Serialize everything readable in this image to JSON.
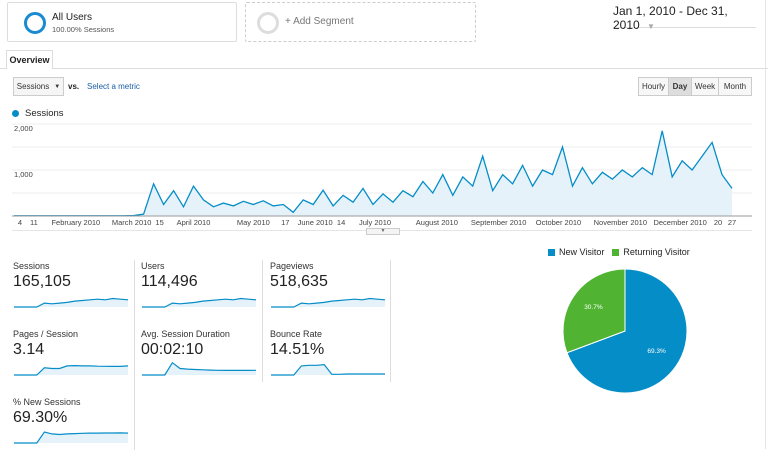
{
  "segments": [
    {
      "title": "All Users",
      "subtitle": "100.00% Sessions"
    },
    {
      "title": "+ Add Segment"
    }
  ],
  "date_range": "Jan 1, 2010 - Dec 31, 2010",
  "tabs": [
    {
      "label": "Overview"
    }
  ],
  "metric_select": {
    "value": "Sessions",
    "vs": "vs.",
    "compare_link": "Select a metric"
  },
  "granularity": {
    "options": [
      "Hourly",
      "Day",
      "Week",
      "Month"
    ],
    "selected": "Day"
  },
  "colors": {
    "accent": "#058dc7",
    "returning": "#50b432",
    "link": "#1a5fa8"
  },
  "chart_data": [
    {
      "type": "area",
      "legend": [
        "Sessions"
      ],
      "y_ticks": [
        "2,000",
        "1,000"
      ],
      "ylim": [
        0,
        2000
      ],
      "x_ticks": [
        {
          "label": "4",
          "date": "2010-01-04"
        },
        {
          "label": "11",
          "date": "2010-01-11"
        },
        {
          "label": "February 2010",
          "date": "2010-02-01"
        },
        {
          "label": "March 2010",
          "date": "2010-03-01"
        },
        {
          "label": "15",
          "date": "2010-03-15"
        },
        {
          "label": "April 2010",
          "date": "2010-04-01"
        },
        {
          "label": "May 2010",
          "date": "2010-05-01"
        },
        {
          "label": "17",
          "date": "2010-05-17"
        },
        {
          "label": "June 2010",
          "date": "2010-06-01"
        },
        {
          "label": "14",
          "date": "2010-06-14"
        },
        {
          "label": "July 2010",
          "date": "2010-07-01"
        },
        {
          "label": "August 2010",
          "date": "2010-08-01"
        },
        {
          "label": "September 2010",
          "date": "2010-09-01"
        },
        {
          "label": "October 2010",
          "date": "2010-10-01"
        },
        {
          "label": "November 2010",
          "date": "2010-11-01"
        },
        {
          "label": "December 2010",
          "date": "2010-12-01"
        },
        {
          "label": "20",
          "date": "2010-12-20"
        },
        {
          "label": "27",
          "date": "2010-12-27"
        }
      ],
      "x": [
        "2010-01-01",
        "2010-01-06",
        "2010-01-11",
        "2010-01-16",
        "2010-01-21",
        "2010-01-26",
        "2010-01-31",
        "2010-02-05",
        "2010-02-10",
        "2010-02-15",
        "2010-02-20",
        "2010-02-25",
        "2010-03-02",
        "2010-03-07",
        "2010-03-12",
        "2010-03-17",
        "2010-03-22",
        "2010-03-27",
        "2010-04-01",
        "2010-04-06",
        "2010-04-11",
        "2010-04-16",
        "2010-04-21",
        "2010-04-26",
        "2010-05-01",
        "2010-05-06",
        "2010-05-11",
        "2010-05-16",
        "2010-05-21",
        "2010-05-26",
        "2010-05-31",
        "2010-06-05",
        "2010-06-10",
        "2010-06-15",
        "2010-06-20",
        "2010-06-25",
        "2010-06-30",
        "2010-07-05",
        "2010-07-10",
        "2010-07-15",
        "2010-07-20",
        "2010-07-25",
        "2010-07-30",
        "2010-08-04",
        "2010-08-09",
        "2010-08-14",
        "2010-08-19",
        "2010-08-24",
        "2010-08-29",
        "2010-09-03",
        "2010-09-08",
        "2010-09-13",
        "2010-09-18",
        "2010-09-23",
        "2010-09-28",
        "2010-10-03",
        "2010-10-08",
        "2010-10-13",
        "2010-10-18",
        "2010-10-23",
        "2010-10-28",
        "2010-11-02",
        "2010-11-07",
        "2010-11-12",
        "2010-11-17",
        "2010-11-22",
        "2010-11-27",
        "2010-12-02",
        "2010-12-07",
        "2010-12-12",
        "2010-12-17",
        "2010-12-22",
        "2010-12-27"
      ],
      "series": [
        {
          "name": "Sessions",
          "values": [
            5,
            5,
            5,
            5,
            5,
            5,
            5,
            5,
            5,
            5,
            5,
            5,
            10,
            40,
            700,
            250,
            550,
            200,
            650,
            350,
            200,
            280,
            220,
            320,
            250,
            330,
            220,
            250,
            80,
            350,
            250,
            560,
            220,
            450,
            300,
            600,
            250,
            480,
            300,
            550,
            420,
            750,
            500,
            900,
            450,
            850,
            650,
            1300,
            550,
            900,
            700,
            1100,
            650,
            1000,
            900,
            1500,
            650,
            1050,
            700,
            950,
            800,
            1000,
            850,
            1050,
            900,
            1850,
            850,
            1200,
            1000,
            1300,
            1600,
            900,
            600
          ]
        }
      ]
    },
    {
      "type": "pie",
      "legend": [
        "New Visitor",
        "Returning Visitor"
      ],
      "values": [
        69.3,
        30.7
      ],
      "labels": [
        "69.3%",
        "30.7%"
      ]
    }
  ],
  "metrics": [
    {
      "label": "Sessions",
      "value": "165,105",
      "spark": [
        0,
        0,
        0,
        0,
        30,
        25,
        30,
        35,
        45,
        50,
        55,
        60,
        55,
        65,
        60,
        55
      ]
    },
    {
      "label": "Users",
      "value": "114,496",
      "spark": [
        0,
        0,
        0,
        0,
        30,
        25,
        30,
        35,
        45,
        50,
        55,
        60,
        55,
        65,
        60,
        55
      ]
    },
    {
      "label": "Pageviews",
      "value": "518,635",
      "spark": [
        0,
        0,
        0,
        0,
        30,
        25,
        30,
        35,
        45,
        50,
        55,
        60,
        55,
        65,
        60,
        55
      ]
    },
    {
      "label": "Pages / Session",
      "value": "3.14",
      "spark": [
        0,
        0,
        0,
        0,
        55,
        50,
        50,
        70,
        72,
        70,
        70,
        68,
        67,
        66,
        66,
        70
      ]
    },
    {
      "label": "Avg. Session Duration",
      "value": "00:02:10",
      "spark": [
        0,
        0,
        0,
        0,
        95,
        50,
        45,
        42,
        40,
        38,
        36,
        35,
        35,
        35,
        35,
        36
      ]
    },
    {
      "label": "Bounce Rate",
      "value": "14.51%",
      "spark": [
        0,
        0,
        0,
        0,
        70,
        75,
        75,
        80,
        5,
        5,
        8,
        8,
        8,
        8,
        8,
        8
      ]
    },
    {
      "label": "% New Sessions",
      "value": "69.30%",
      "spark": [
        0,
        0,
        0,
        0,
        85,
        70,
        65,
        70,
        72,
        75,
        76,
        76,
        77,
        77,
        78,
        76
      ]
    }
  ]
}
